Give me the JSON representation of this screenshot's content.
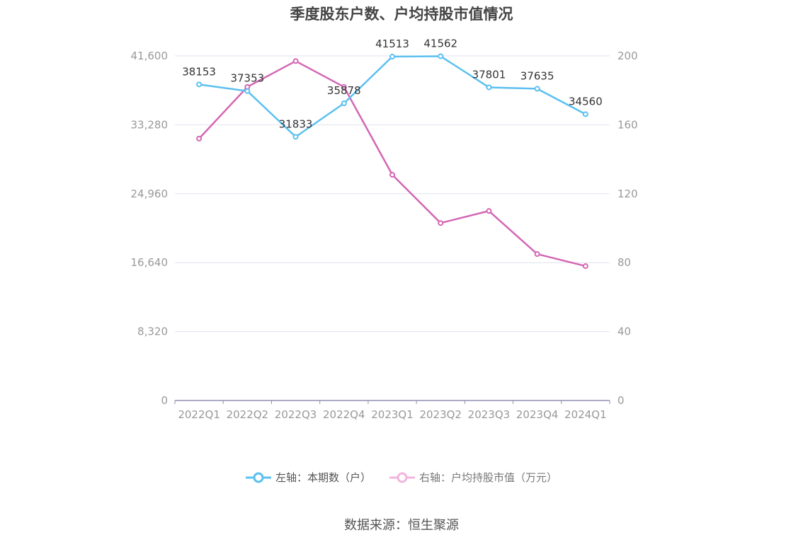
{
  "chart_data": {
    "type": "line",
    "title": "季度股东户数、户均持股市值情况",
    "categories": [
      "2022Q1",
      "2022Q2",
      "2022Q3",
      "2022Q4",
      "2023Q1",
      "2023Q2",
      "2023Q3",
      "2023Q4",
      "2024Q1"
    ],
    "left_axis": {
      "min": 0,
      "max": 41600,
      "ticks": [
        "0",
        "8,320",
        "16,640",
        "24,960",
        "33,280",
        "41,600"
      ]
    },
    "right_axis": {
      "min": 0,
      "max": 200,
      "ticks": [
        "0",
        "40",
        "80",
        "120",
        "160",
        "200"
      ]
    },
    "grid": true,
    "legend_position": "bottom",
    "series": [
      {
        "name": "左轴：本期数（户）",
        "axis": "left",
        "color": "#5bc0f0",
        "show_labels": true,
        "values": [
          38153,
          37353,
          31833,
          35878,
          41513,
          41562,
          37801,
          37635,
          34560
        ]
      },
      {
        "name": "右轴：户均持股市值（万元）",
        "axis": "right",
        "color": "#d467b4",
        "show_labels": false,
        "values": [
          152,
          182,
          197,
          182,
          131,
          103,
          110,
          85,
          78
        ]
      }
    ]
  },
  "source": "数据来源：恒生聚源"
}
